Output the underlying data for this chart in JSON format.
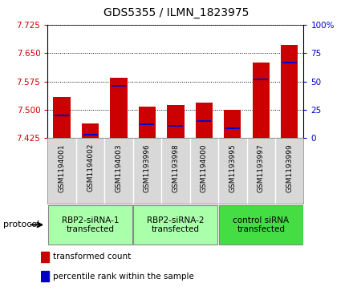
{
  "title": "GDS5355 / ILMN_1823975",
  "samples": [
    "GSM1194001",
    "GSM1194002",
    "GSM1194003",
    "GSM1193996",
    "GSM1193998",
    "GSM1194000",
    "GSM1193995",
    "GSM1193997",
    "GSM1193999"
  ],
  "transformed_counts": [
    7.535,
    7.465,
    7.585,
    7.508,
    7.512,
    7.519,
    7.5,
    7.625,
    7.672
  ],
  "percentile_ranks": [
    20,
    3,
    46,
    12,
    11,
    15,
    9,
    52,
    67
  ],
  "ylim_left": [
    7.425,
    7.725
  ],
  "ylim_right": [
    0,
    100
  ],
  "yticks_left": [
    7.425,
    7.5,
    7.575,
    7.65,
    7.725
  ],
  "yticks_right": [
    0,
    25,
    50,
    75,
    100
  ],
  "bar_color": "#cc0000",
  "percentile_color": "#0000cc",
  "base_value": 7.425,
  "groups": [
    {
      "label": "RBP2-siRNA-1\ntransfected",
      "indices": [
        0,
        1,
        2
      ],
      "color": "#aaffaa"
    },
    {
      "label": "RBP2-siRNA-2\ntransfected",
      "indices": [
        3,
        4,
        5
      ],
      "color": "#aaffaa"
    },
    {
      "label": "control siRNA\ntransfected",
      "indices": [
        6,
        7,
        8
      ],
      "color": "#44dd44"
    }
  ],
  "protocol_label": "protocol",
  "legend_items": [
    {
      "label": "transformed count",
      "color": "#cc0000"
    },
    {
      "label": "percentile rank within the sample",
      "color": "#0000cc"
    }
  ],
  "sample_bg": "#d8d8d8",
  "plot_bg": "#ffffff",
  "title_color": "#000000"
}
